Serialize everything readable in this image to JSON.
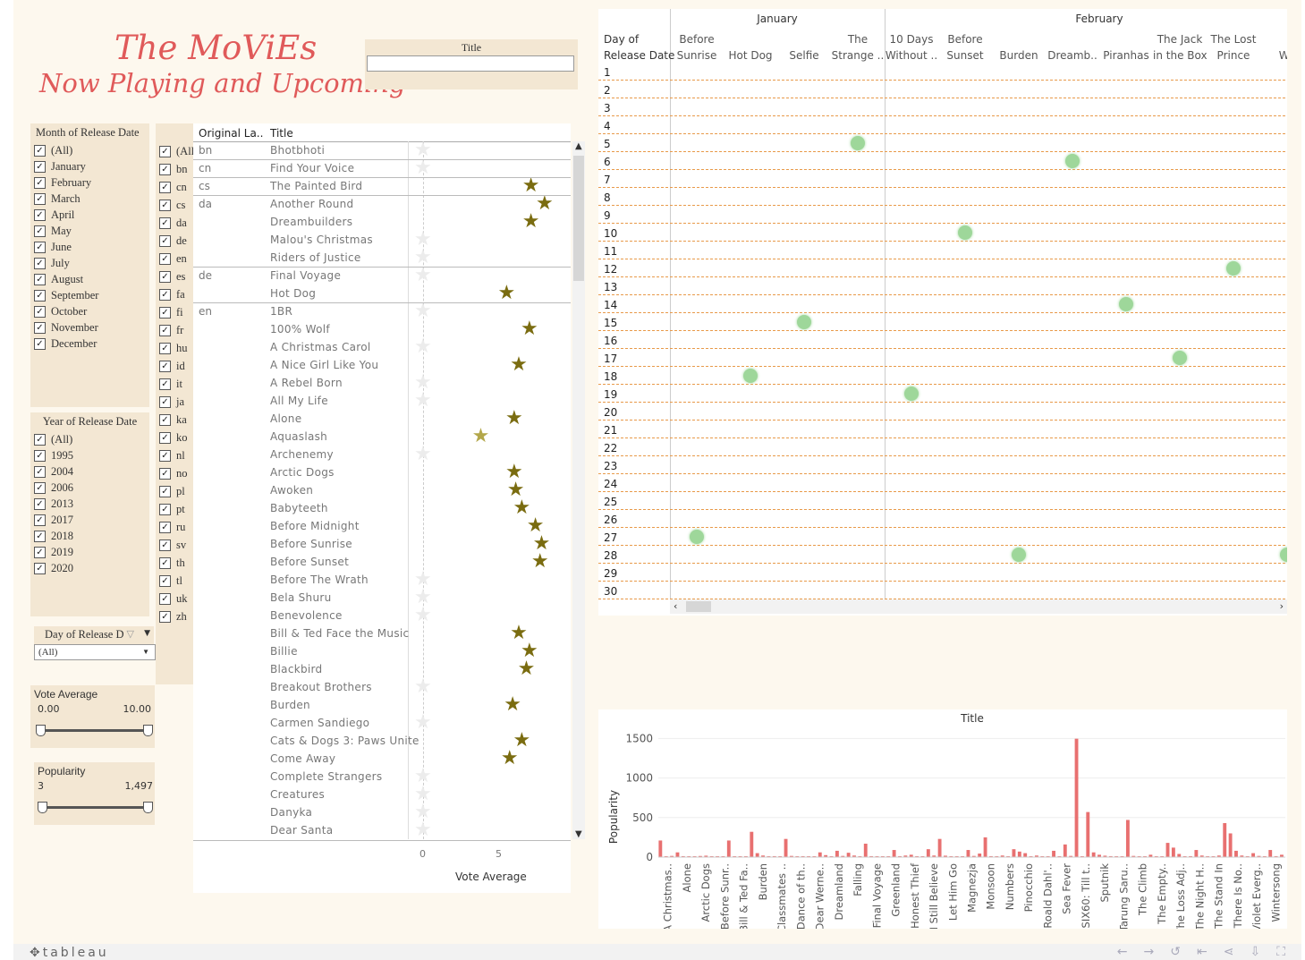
{
  "branding": {
    "title_line1": "The MoViEs",
    "title_line2": "Now Playing and Upcoming",
    "logo": "tableau"
  },
  "title_filter": {
    "label": "Title",
    "value": ""
  },
  "month_filter": {
    "label": "Month of Release Date",
    "items": [
      "(All)",
      "January",
      "February",
      "March",
      "April",
      "May",
      "June",
      "July",
      "August",
      "September",
      "October",
      "November",
      "December"
    ]
  },
  "year_filter": {
    "label": "Year of Release Date",
    "items": [
      "(All)",
      "1995",
      "2004",
      "2006",
      "2013",
      "2017",
      "2018",
      "2019",
      "2020"
    ]
  },
  "day_filter": {
    "label": "Day of Release D",
    "value": "(All)"
  },
  "vote_slider": {
    "label": "Vote Average",
    "min_label": "0.00",
    "max_label": "10.00"
  },
  "popularity_slider": {
    "label": "Popularity",
    "min_label": "3",
    "max_label": "1,497"
  },
  "lang_filter": {
    "items": [
      "(All)",
      "bn",
      "cn",
      "cs",
      "da",
      "de",
      "en",
      "es",
      "fa",
      "fi",
      "fr",
      "hu",
      "id",
      "it",
      "ja",
      "ka",
      "ko",
      "nl",
      "no",
      "pl",
      "pt",
      "ru",
      "sv",
      "th",
      "tl",
      "uk",
      "zh"
    ]
  },
  "table": {
    "col_lang": "Original La..",
    "col_title": "Title",
    "axis_label": "Vote Average",
    "axis_ticks": [
      "0",
      "5"
    ],
    "rows": [
      {
        "lang": "bn",
        "title": "Bhotbhoti",
        "vote": 0
      },
      {
        "lang": "cn",
        "title": "Find Your Voice",
        "vote": 0
      },
      {
        "lang": "cs",
        "title": "The Painted Bird",
        "vote": 7.1
      },
      {
        "lang": "da",
        "title": "Another Round",
        "vote": 8.0
      },
      {
        "lang": "",
        "title": "Dreambuilders",
        "vote": 7.1
      },
      {
        "lang": "",
        "title": "Malou's Christmas",
        "vote": 0
      },
      {
        "lang": "",
        "title": "Riders of Justice",
        "vote": 0
      },
      {
        "lang": "de",
        "title": "Final Voyage",
        "vote": 0
      },
      {
        "lang": "",
        "title": "Hot Dog",
        "vote": 5.5
      },
      {
        "lang": "en",
        "title": "1BR",
        "vote": 0
      },
      {
        "lang": "",
        "title": "100% Wolf",
        "vote": 7.0
      },
      {
        "lang": "",
        "title": "A Christmas Carol",
        "vote": 0
      },
      {
        "lang": "",
        "title": "A Nice Girl Like You",
        "vote": 6.3
      },
      {
        "lang": "",
        "title": "A Rebel Born",
        "vote": 0
      },
      {
        "lang": "",
        "title": "All My Life",
        "vote": 0
      },
      {
        "lang": "",
        "title": "Alone",
        "vote": 6.0
      },
      {
        "lang": "",
        "title": "Aquaslash",
        "vote": 3.8
      },
      {
        "lang": "",
        "title": "Archenemy",
        "vote": 0
      },
      {
        "lang": "",
        "title": "Arctic Dogs",
        "vote": 6.0
      },
      {
        "lang": "",
        "title": "Awoken",
        "vote": 6.1
      },
      {
        "lang": "",
        "title": "Babyteeth",
        "vote": 6.5
      },
      {
        "lang": "",
        "title": "Before Midnight",
        "vote": 7.4
      },
      {
        "lang": "",
        "title": "Before Sunrise",
        "vote": 7.8
      },
      {
        "lang": "",
        "title": "Before Sunset",
        "vote": 7.7
      },
      {
        "lang": "",
        "title": "Before The Wrath",
        "vote": 0
      },
      {
        "lang": "",
        "title": "Bela Shuru",
        "vote": 0
      },
      {
        "lang": "",
        "title": "Benevolence",
        "vote": 0
      },
      {
        "lang": "",
        "title": "Bill & Ted Face the Music",
        "vote": 6.3
      },
      {
        "lang": "",
        "title": "Billie",
        "vote": 7.0
      },
      {
        "lang": "",
        "title": "Blackbird",
        "vote": 6.8
      },
      {
        "lang": "",
        "title": "Breakout Brothers",
        "vote": 0
      },
      {
        "lang": "",
        "title": "Burden",
        "vote": 5.9
      },
      {
        "lang": "",
        "title": "Carmen Sandiego",
        "vote": 0
      },
      {
        "lang": "",
        "title": "Cats & Dogs 3: Paws Unite",
        "vote": 6.5
      },
      {
        "lang": "",
        "title": "Come Away",
        "vote": 5.7
      },
      {
        "lang": "",
        "title": "Complete Strangers",
        "vote": 0
      },
      {
        "lang": "",
        "title": "Creatures",
        "vote": 0
      },
      {
        "lang": "",
        "title": "Danyka",
        "vote": 0
      },
      {
        "lang": "",
        "title": "Dear Santa",
        "vote": 0
      }
    ]
  },
  "calendar": {
    "months": [
      "January",
      "February"
    ],
    "row_header_line1": "Day of",
    "row_header_line2": "Release Date",
    "columns": [
      {
        "l1": "Before",
        "l2": "Sunrise",
        "day": 27
      },
      {
        "l1": "",
        "l2": "Hot Dog",
        "day": 18
      },
      {
        "l1": "",
        "l2": "Selfie",
        "day": 15
      },
      {
        "l1": "The",
        "l2": "Strange ..",
        "day": 5
      },
      {
        "l1": "10 Days",
        "l2": "Without ..",
        "day": 19
      },
      {
        "l1": "Before",
        "l2": "Sunset",
        "day": 10
      },
      {
        "l1": "",
        "l2": "Burden",
        "day": 28
      },
      {
        "l1": "",
        "l2": "Dreamb..",
        "day": 6
      },
      {
        "l1": "",
        "l2": "Piranhas",
        "day": 14
      },
      {
        "l1": "The Jack",
        "l2": "in the Box",
        "day": 17
      },
      {
        "l1": "The Lost",
        "l2": "Prince",
        "day": 12
      },
      {
        "l1": "",
        "l2": "We",
        "day": 28
      }
    ],
    "days": [
      "1",
      "2",
      "3",
      "4",
      "5",
      "6",
      "7",
      "8",
      "9",
      "10",
      "11",
      "12",
      "13",
      "14",
      "15",
      "16",
      "17",
      "18",
      "19",
      "20",
      "21",
      "22",
      "23",
      "24",
      "25",
      "26",
      "27",
      "28",
      "29",
      "30"
    ]
  },
  "chart_data": {
    "type": "bar",
    "title": "Title",
    "ylabel": "Popularity",
    "ylim": [
      0,
      1550
    ],
    "yticks": [
      "0",
      "500",
      "1000",
      "1500"
    ],
    "tick_labels": [
      "A Christmas..",
      "Alone",
      "Arctic Dogs",
      "Before Sunr..",
      "Bill & Ted Fa..",
      "Burden",
      "Classmates ..",
      "Dance of th..",
      "Dear Werne..",
      "Dreamland",
      "Falling",
      "Final Voyage",
      "Greenland",
      "Honest Thief",
      "I Still Believe",
      "Let Him Go",
      "Magnezja",
      "Monsoon",
      "Numbers",
      "Pinocchio",
      "Roald Dahl'..",
      "Sea Fever",
      "SIX60: Till t..",
      "Sputnik",
      "Tarung Saru..",
      "The Climb",
      "The Empty..",
      "The Loss Adj..",
      "The Night H..",
      "The Stand In",
      "There Is No..",
      "Violet Everg..",
      "Wintersong"
    ],
    "values": [
      210,
      10,
      15,
      60,
      12,
      8,
      6,
      14,
      18,
      10,
      8,
      5,
      210,
      6,
      10,
      8,
      320,
      50,
      20,
      9,
      12,
      6,
      230,
      15,
      8,
      12,
      6,
      8,
      60,
      25,
      10,
      80,
      15,
      55,
      20,
      8,
      170,
      12,
      6,
      5,
      10,
      90,
      12,
      20,
      30,
      10,
      8,
      100,
      20,
      230,
      18,
      6,
      10,
      8,
      90,
      15,
      45,
      250,
      12,
      8,
      20,
      10,
      100,
      70,
      50,
      10,
      20,
      8,
      6,
      80,
      10,
      160,
      15,
      1497,
      10,
      570,
      60,
      30,
      18,
      12,
      8,
      10,
      470,
      15,
      8,
      6,
      30,
      10,
      8,
      180,
      120,
      40,
      10,
      12,
      90,
      20,
      8,
      10,
      20,
      430,
      300,
      80,
      20,
      10,
      50,
      15,
      8,
      90,
      12,
      30
    ]
  },
  "colors": {
    "accent": "#e05a5a",
    "panel": "#f3e7d3",
    "background": "#fdf8ee",
    "star_dark": "#7a6c10",
    "star_light": "#b3a74a",
    "dot": "#9ed79a",
    "bar": "#e87070",
    "grid_dash": "#e89a4a"
  }
}
